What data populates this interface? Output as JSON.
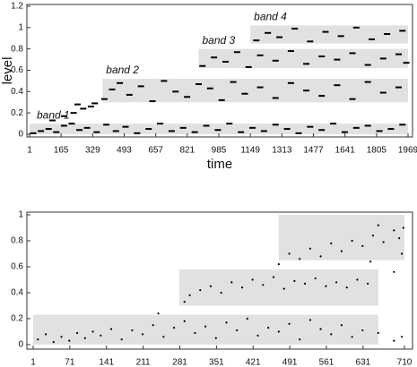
{
  "chart_data": [
    {
      "type": "scatter",
      "x_label": "time",
      "y_label": "level",
      "color": "#000000",
      "xlim": [
        1,
        1969
      ],
      "xticks": [
        1,
        165,
        329,
        493,
        657,
        821,
        985,
        1149,
        1313,
        1477,
        1641,
        1805,
        1969
      ],
      "ylim": [
        0,
        1.2
      ],
      "yticks": [
        0,
        0.2,
        0.4,
        0.6,
        0.8,
        1,
        1.2
      ],
      "bands": [
        {
          "label": "band 1",
          "x": [
            1,
            1969
          ],
          "y": [
            0,
            0.1
          ]
        },
        {
          "label": "band 2",
          "x": [
            380,
            1969
          ],
          "y": [
            0.3,
            0.52
          ]
        },
        {
          "label": "band 3",
          "x": [
            880,
            1969
          ],
          "y": [
            0.62,
            0.8
          ]
        },
        {
          "label": "band 4",
          "x": [
            1149,
            1969
          ],
          "y": [
            0.85,
            1.02
          ]
        }
      ],
      "x": [
        20,
        60,
        100,
        140,
        180,
        220,
        260,
        300,
        350,
        400,
        450,
        500,
        560,
        620,
        680,
        740,
        800,
        860,
        920,
        980,
        1040,
        1100,
        1160,
        1220,
        1280,
        1340,
        1400,
        1460,
        1520,
        1580,
        1640,
        1700,
        1760,
        1820,
        1880,
        1940,
        120,
        180,
        230,
        280,
        320,
        250,
        340,
        390,
        430,
        470,
        520,
        580,
        640,
        700,
        760,
        820,
        880,
        940,
        1000,
        1060,
        1120,
        1200,
        1280,
        1360,
        1440,
        1520,
        1600,
        1680,
        1760,
        1840,
        1920,
        900,
        960,
        1020,
        1080,
        1140,
        1200,
        1280,
        1360,
        1440,
        1520,
        1600,
        1680,
        1760,
        1840,
        1920,
        1960,
        1180,
        1240,
        1300,
        1380,
        1460,
        1540,
        1620,
        1700,
        1780,
        1860,
        1940
      ],
      "values": [
        0.01,
        0.03,
        0.05,
        0.02,
        0.08,
        0.1,
        0.04,
        0.06,
        0.02,
        0.09,
        0.03,
        0.07,
        0.01,
        0.05,
        0.1,
        0.03,
        0.06,
        0.02,
        0.08,
        0.04,
        0.1,
        0.02,
        0.06,
        0.03,
        0.09,
        0.05,
        0.01,
        0.07,
        0.04,
        0.1,
        0.02,
        0.06,
        0.08,
        0.03,
        0.05,
        0.09,
        0.13,
        0.17,
        0.2,
        0.24,
        0.26,
        0.28,
        0.29,
        0.33,
        0.42,
        0.48,
        0.37,
        0.45,
        0.31,
        0.5,
        0.4,
        0.35,
        0.47,
        0.43,
        0.32,
        0.49,
        0.38,
        0.44,
        0.34,
        0.48,
        0.41,
        0.36,
        0.46,
        0.33,
        0.49,
        0.39,
        0.44,
        0.64,
        0.72,
        0.68,
        0.77,
        0.63,
        0.74,
        0.69,
        0.78,
        0.66,
        0.73,
        0.7,
        0.76,
        0.65,
        0.71,
        0.75,
        0.67,
        0.88,
        0.95,
        0.91,
        0.99,
        0.87,
        0.96,
        0.92,
        1.0,
        0.89,
        0.94,
        0.97
      ]
    },
    {
      "type": "scatter",
      "color": "#000000",
      "xlim": [
        1,
        710
      ],
      "xticks": [
        1,
        71,
        141,
        211,
        281,
        351,
        421,
        491,
        561,
        631,
        710
      ],
      "ylim": [
        0,
        1
      ],
      "yticks": [
        0,
        0.2,
        0.4,
        0.6,
        0.8,
        1
      ],
      "bands": [
        {
          "x": [
            1,
            660
          ],
          "y": [
            0,
            0.23
          ]
        },
        {
          "x": [
            280,
            660
          ],
          "y": [
            0.3,
            0.58
          ]
        },
        {
          "x": [
            470,
            710
          ],
          "y": [
            0.65,
            1
          ]
        }
      ],
      "x": [
        10,
        25,
        40,
        55,
        70,
        85,
        100,
        115,
        130,
        150,
        170,
        190,
        210,
        230,
        240,
        250,
        270,
        290,
        310,
        330,
        350,
        370,
        390,
        410,
        430,
        450,
        470,
        490,
        510,
        530,
        550,
        570,
        590,
        610,
        630,
        660,
        690,
        705,
        290,
        300,
        320,
        340,
        360,
        380,
        400,
        420,
        440,
        460,
        480,
        500,
        520,
        540,
        560,
        580,
        600,
        620,
        640,
        470,
        490,
        510,
        530,
        550,
        570,
        590,
        610,
        630,
        650,
        670,
        690,
        700,
        708,
        660,
        645,
        690,
        705
      ],
      "values": [
        0.04,
        0.08,
        0.02,
        0.06,
        0.03,
        0.09,
        0.05,
        0.1,
        0.07,
        0.12,
        0.04,
        0.11,
        0.08,
        0.15,
        0.24,
        0.06,
        0.13,
        0.18,
        0.09,
        0.14,
        0.05,
        0.17,
        0.11,
        0.2,
        0.07,
        0.13,
        0.1,
        0.16,
        0.04,
        0.19,
        0.12,
        0.08,
        0.15,
        0.06,
        0.11,
        0.09,
        0.03,
        0.06,
        0.33,
        0.38,
        0.42,
        0.45,
        0.4,
        0.48,
        0.44,
        0.5,
        0.46,
        0.52,
        0.43,
        0.49,
        0.47,
        0.51,
        0.45,
        0.48,
        0.44,
        0.5,
        0.47,
        0.62,
        0.7,
        0.66,
        0.74,
        0.68,
        0.78,
        0.72,
        0.8,
        0.76,
        0.84,
        0.79,
        0.88,
        0.82,
        0.9,
        0.92,
        0.64,
        0.56,
        0.7
      ]
    }
  ]
}
